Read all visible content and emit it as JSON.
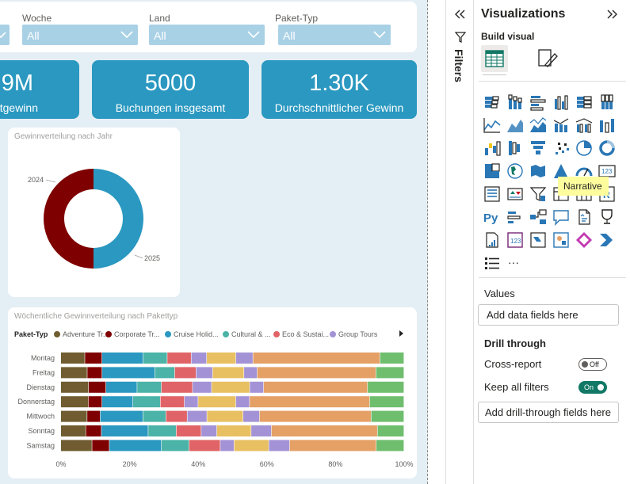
{
  "filters": {
    "slicers": [
      {
        "label": "",
        "value": ""
      },
      {
        "label": "Woche",
        "value": "All"
      },
      {
        "label": "Land",
        "value": "All"
      },
      {
        "label": "Paket-Typ",
        "value": "All"
      }
    ]
  },
  "kpis": [
    {
      "value": "9M",
      "label": "tgewinn"
    },
    {
      "value": "5000",
      "label": "Buchungen insgesamt"
    },
    {
      "value": "1.30K",
      "label": "Durchschnittlicher Gewinn"
    }
  ],
  "donut": {
    "title": "Gewinnverteilung nach Jahr",
    "colors": [
      "#2a98c0",
      "#7f0000"
    ]
  },
  "stacked": {
    "title": "Wöchentliche Gewinnverteilung nach Pakettyp",
    "legend_title": "Paket-Typ",
    "legend": [
      {
        "name": "Adventure Tr...",
        "color": "#705c30"
      },
      {
        "name": "Corporate Tr...",
        "color": "#7f0000"
      },
      {
        "name": "Cruise Holid...",
        "color": "#2a98c0"
      },
      {
        "name": "Cultural & ...",
        "color": "#4bb3a7"
      },
      {
        "name": "Eco & Sustai...",
        "color": "#e06467"
      },
      {
        "name": "Group Tours",
        "color": "#a393d6"
      }
    ],
    "seg_colors": [
      "#705c30",
      "#7f0000",
      "#2a98c0",
      "#4bb3a7",
      "#e06467",
      "#a393d6",
      "#e8c061",
      "#a393d6",
      "#e5a066",
      "#6fbe6e"
    ]
  },
  "chart_data": [
    {
      "type": "pie",
      "title": "Gewinnverteilung nach Jahr",
      "categories": [
        "2024",
        "2025"
      ],
      "values": [
        50,
        50
      ]
    },
    {
      "type": "bar",
      "title": "Wöchentliche Gewinnverteilung nach Pakettyp",
      "categories": [
        "Montag",
        "Freitag",
        "Dienstag",
        "Donnerstag",
        "Mittwoch",
        "Sonntag",
        "Samstag"
      ],
      "xlim": [
        0,
        100
      ],
      "xticks": [
        "0%",
        "20%",
        "40%",
        "60%",
        "80%",
        "100%"
      ],
      "series": [
        {
          "name": "Adventure Tr...",
          "values": [
            7,
            8,
            8,
            8,
            8,
            8,
            9
          ]
        },
        {
          "name": "Corporate Tr...",
          "values": [
            5,
            4.5,
            5,
            4,
            4,
            5,
            5
          ]
        },
        {
          "name": "Cruise Holid...",
          "values": [
            12,
            16,
            9,
            9,
            13,
            15,
            15
          ]
        },
        {
          "name": "Cultural & ...",
          "values": [
            7,
            6,
            7,
            8,
            7,
            9,
            8
          ]
        },
        {
          "name": "Eco & Sustai...",
          "values": [
            7,
            6.5,
            9,
            7,
            6.5,
            8,
            9
          ]
        },
        {
          "name": "Group Tours",
          "values": [
            4.5,
            5,
            5.5,
            4,
            6,
            5,
            4
          ]
        },
        {
          "name": "",
          "values": [
            8.5,
            9.5,
            11,
            11,
            11,
            11,
            10
          ]
        },
        {
          "name": "",
          "values": [
            5,
            4,
            4,
            4,
            5,
            6.5,
            6
          ]
        },
        {
          "name": "",
          "values": [
            37,
            36,
            30,
            35,
            34,
            34,
            25
          ]
        },
        {
          "name": "",
          "values": [
            7,
            8.5,
            10.5,
            10,
            10,
            8.5,
            8
          ]
        }
      ]
    }
  ],
  "filters_pane": {
    "title": "Filters"
  },
  "viz": {
    "title": "Visualizations",
    "build_visual": "Build visual",
    "tooltip": "Narrative",
    "values_label": "Values",
    "values_placeholder": "Add data fields here",
    "drill_title": "Drill through",
    "cross_report": "Cross-report",
    "cross_report_state": "Off",
    "keep_filters": "Keep all filters",
    "keep_filters_state": "On",
    "drill_placeholder": "Add drill-through fields here",
    "more": "···",
    "accent": "#117865",
    "highlight": "#c50f1f"
  }
}
